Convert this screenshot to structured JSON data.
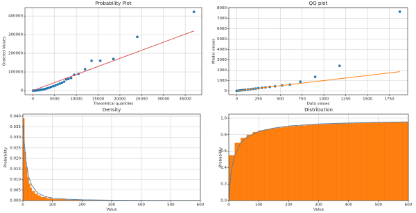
{
  "chart_data": [
    {
      "type": "scatter",
      "title": "Probability Plot",
      "xlabel": "Theoretical quantiles",
      "ylabel": "Ordered Values",
      "xlim": [
        -1800,
        38800
      ],
      "xticks": [
        0,
        5000,
        10000,
        15000,
        20000,
        25000,
        30000,
        35000
      ],
      "ylim": [
        -22000,
        445000
      ],
      "yticks": [
        0,
        100000,
        200000,
        300000,
        400000
      ],
      "grid": true,
      "points": {
        "color": "#1f77b4",
        "x": [
          50,
          200,
          400,
          700,
          1000,
          1400,
          1800,
          2200,
          2600,
          3000,
          3400,
          3800,
          4200,
          4700,
          5200,
          5700,
          6200,
          6700,
          7200,
          7700,
          8200,
          8800,
          9500,
          10500,
          12000,
          13500,
          15500,
          18500,
          24000,
          37000
        ],
        "y": [
          50,
          200,
          400,
          800,
          1500,
          2500,
          4000,
          6000,
          8000,
          10000,
          13000,
          16000,
          20000,
          24000,
          28000,
          33000,
          38000,
          42000,
          48000,
          60000,
          63000,
          68000,
          85000,
          90000,
          115000,
          160000,
          160000,
          170000,
          288000,
          422000
        ]
      },
      "fit_line": {
        "color": "#d9534f",
        "x": [
          0,
          37000
        ],
        "y": [
          0,
          320000
        ]
      }
    },
    {
      "type": "scatter",
      "title": "QQ plot",
      "xlabel": "Data values",
      "ylabel": "Model values",
      "xlim": [
        -90,
        1960
      ],
      "xticks": [
        0,
        250,
        500,
        750,
        1000,
        1250,
        1500,
        1750
      ],
      "ylim": [
        -380,
        8050
      ],
      "yticks": [
        0,
        1000,
        2000,
        3000,
        4000,
        5000,
        6000,
        7000,
        8000
      ],
      "grid": true,
      "points": {
        "color": "#1f77b4",
        "x": [
          0,
          20,
          40,
          60,
          80,
          100,
          130,
          160,
          190,
          220,
          250,
          290,
          330,
          380,
          440,
          520,
          610,
          730,
          900,
          1180,
          1870
        ],
        "y": [
          0,
          20,
          40,
          60,
          80,
          100,
          130,
          160,
          190,
          220,
          250,
          290,
          330,
          380,
          440,
          520,
          600,
          880,
          1350,
          2420,
          7650
        ]
      },
      "fit_line": {
        "color": "#ff7f0e",
        "x": [
          0,
          1870
        ],
        "y": [
          0,
          1850
        ]
      }
    },
    {
      "type": "histogram",
      "title": "Density",
      "xlabel": "Value",
      "ylabel": "Probability",
      "xlim": [
        0,
        600
      ],
      "xticks": [
        0,
        100,
        200,
        300,
        400,
        500,
        600
      ],
      "ylim": [
        0,
        0.041
      ],
      "yticks": [
        {
          "value": 0,
          "label": "0.000"
        },
        0.005,
        {
          "value": 0.01,
          "label": "0.010"
        },
        0.015,
        {
          "value": 0.02,
          "label": "0.020"
        },
        0.025,
        {
          "value": 0.03,
          "label": "0.030"
        },
        0.035,
        {
          "value": 0.04,
          "label": "0.040"
        }
      ],
      "grid": true,
      "color": "#ff7f0e",
      "bins": [
        0,
        5,
        10,
        15,
        20,
        25,
        30,
        40,
        50,
        60,
        80,
        100,
        150,
        200,
        300,
        400,
        600
      ],
      "values": [
        0.039,
        0.023,
        0.016,
        0.011,
        0.008,
        0.006,
        0.0045,
        0.0032,
        0.0024,
        0.0016,
        0.001,
        0.0006,
        0.0003,
        0.00015,
        7e-05,
        3e-05
      ],
      "curve": {
        "color": "#5f7f99",
        "x": [
          1,
          5,
          10,
          20,
          30,
          50,
          75,
          100,
          150,
          200,
          300,
          400,
          600
        ],
        "y": [
          0.036,
          0.027,
          0.019,
          0.011,
          0.0072,
          0.0036,
          0.0019,
          0.0012,
          0.0006,
          0.00035,
          0.00016,
          9e-05,
          4e-05
        ]
      }
    },
    {
      "type": "histogram",
      "title": "Distribution",
      "xlabel": "Value",
      "ylabel": "Probability",
      "xlim": [
        0,
        600
      ],
      "xticks": [
        0,
        100,
        200,
        300,
        400,
        500,
        600
      ],
      "ylim": [
        0,
        1.05
      ],
      "yticks": [
        {
          "value": 0,
          "label": "0.0"
        },
        0.2,
        0.4,
        0.6,
        0.8,
        {
          "value": 1,
          "label": "1.0"
        }
      ],
      "grid": true,
      "color": "#ff7f0e",
      "bins": [
        0,
        20,
        40,
        60,
        80,
        100,
        120,
        140,
        160,
        180,
        200,
        220,
        240,
        260,
        280,
        300,
        320,
        340,
        360,
        380,
        400,
        420,
        440,
        460,
        480,
        500,
        520,
        540,
        560,
        580,
        600
      ],
      "values": [
        0.55,
        0.7,
        0.76,
        0.8,
        0.83,
        0.85,
        0.865,
        0.875,
        0.885,
        0.893,
        0.9,
        0.906,
        0.911,
        0.916,
        0.92,
        0.924,
        0.927,
        0.93,
        0.933,
        0.935,
        0.937,
        0.939,
        0.941,
        0.943,
        0.945,
        0.946,
        0.947,
        0.948,
        0.949,
        0.95
      ],
      "curve": {
        "color": "#5f7f99",
        "x": [
          0,
          5,
          10,
          20,
          40,
          60,
          100,
          150,
          200,
          300,
          400,
          500,
          600
        ],
        "y": [
          0,
          0.25,
          0.4,
          0.55,
          0.7,
          0.77,
          0.84,
          0.88,
          0.905,
          0.93,
          0.942,
          0.95,
          0.955
        ]
      }
    }
  ]
}
